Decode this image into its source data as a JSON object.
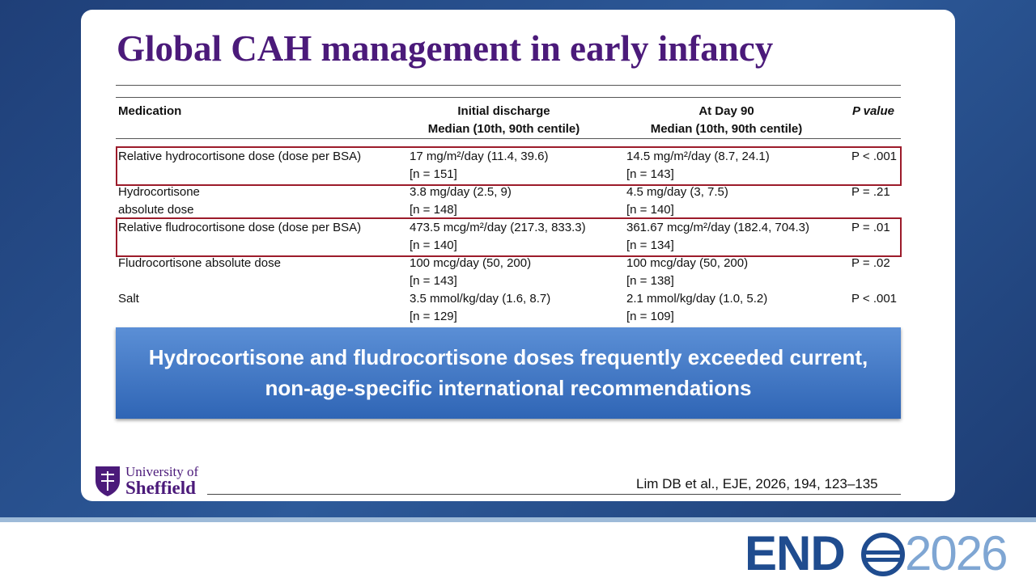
{
  "title": "Global CAH management in early infancy",
  "table": {
    "columns": [
      {
        "label": "Medication"
      },
      {
        "label": "Initial discharge",
        "sublabel": "Median (10th, 90th centile)"
      },
      {
        "label": "At Day 90",
        "sublabel": "Median (10th, 90th centile)"
      },
      {
        "label": "P value"
      }
    ],
    "rows": [
      {
        "medication": "Relative hydrocortisone dose (dose per BSA)",
        "initial": "17 mg/m²/day (11.4, 39.6)",
        "initial_n": "[n = 151]",
        "day90": "14.5 mg/m²/day (8.7, 24.1)",
        "day90_n": "[n = 143]",
        "p": "P < .001",
        "highlighted": true
      },
      {
        "medication": "Hydrocortisone absolute dose",
        "initial": "3.8 mg/day (2.5, 9)",
        "initial_n": "[n = 148]",
        "day90": "4.5 mg/day (3, 7.5)",
        "day90_n": "[n = 140]",
        "p": "P = .21",
        "highlighted": false
      },
      {
        "medication": "Relative fludrocortisone dose (dose per BSA)",
        "initial": "473.5 mcg/m²/day (217.3, 833.3)",
        "initial_n": "[n = 140]",
        "day90": "361.67 mcg/m²/day (182.4, 704.3)",
        "day90_n": "[n = 134]",
        "p": "P = .01",
        "highlighted": true
      },
      {
        "medication": "Fludrocortisone absolute dose",
        "initial": "100 mcg/day (50, 200)",
        "initial_n": "[n = 143]",
        "day90": "100 mcg/day (50, 200)",
        "day90_n": "[n = 138]",
        "p": "P = .02",
        "highlighted": false
      },
      {
        "medication": "Salt",
        "initial": "3.5 mmol/kg/day (1.6, 8.7)",
        "initial_n": "[n = 129]",
        "day90": "2.1 mmol/kg/day (1.0, 5.2)",
        "day90_n": "[n = 109]",
        "p": "P < .001",
        "highlighted": false
      }
    ]
  },
  "callout": "Hydrocortisone and fludrocortisone doses frequently exceeded current, non-age-specific international recommendations",
  "logo": {
    "line1": "University of",
    "line2": "Sheffield"
  },
  "citation": "Lim DB et al., EJE, 2026, 194, 123–135",
  "brand": {
    "left": "END",
    "right": "2026"
  }
}
